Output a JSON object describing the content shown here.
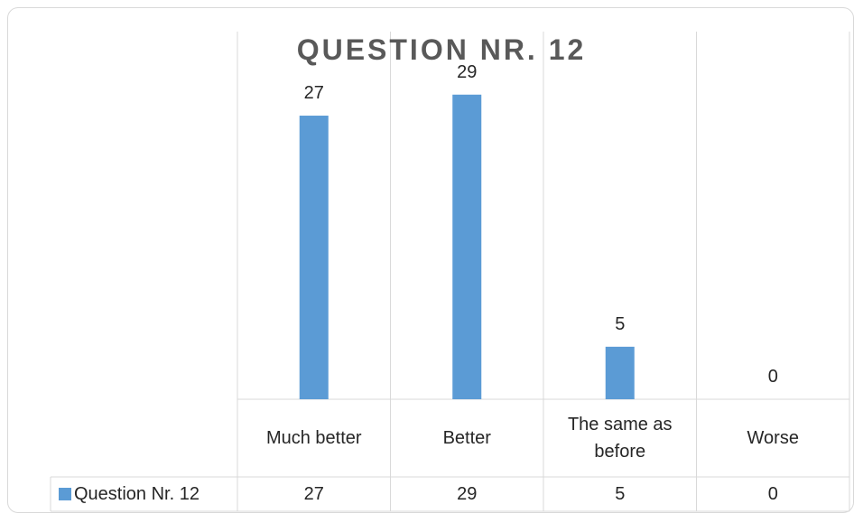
{
  "chart_data": {
    "type": "bar",
    "title": "QUESTION NR. 12",
    "categories": [
      "Much better",
      "Better",
      "The same as before",
      "Worse"
    ],
    "series": [
      {
        "name": "Question Nr. 12",
        "color": "#5b9bd5",
        "values": [
          27,
          29,
          5,
          0
        ]
      }
    ],
    "ylim": [
      0,
      35
    ],
    "data_table": true
  }
}
